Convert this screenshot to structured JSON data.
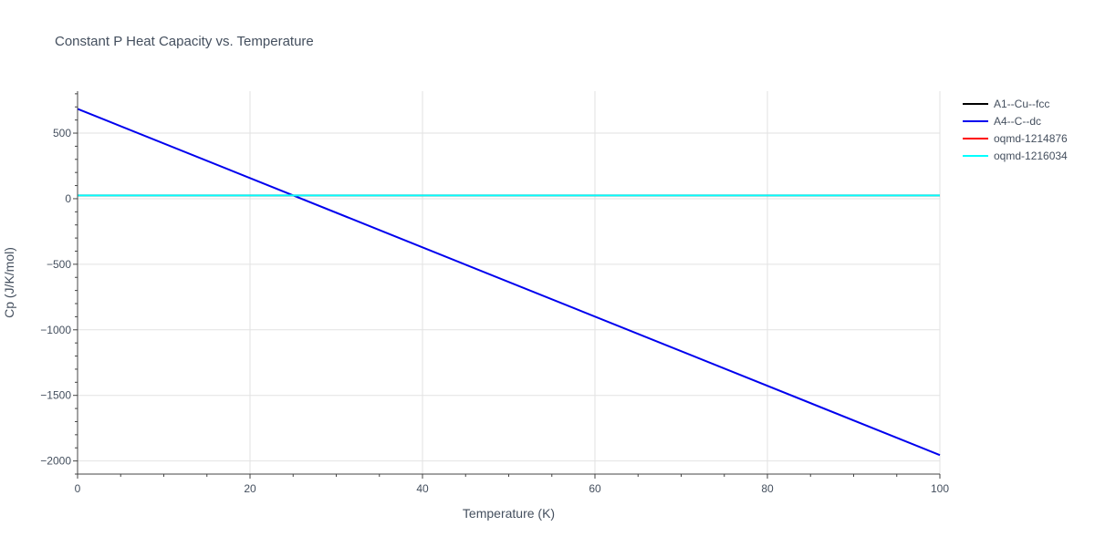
{
  "chart_data": {
    "type": "line",
    "title": "Constant P Heat Capacity vs. Temperature",
    "xlabel": "Temperature (K)",
    "ylabel": "Cp (J/K/mol)",
    "xlim": [
      0,
      100
    ],
    "ylim": [
      -2100,
      820
    ],
    "x_ticks": [
      0,
      20,
      40,
      60,
      80,
      100
    ],
    "y_ticks": [
      500,
      0,
      -500,
      -1000,
      -1500,
      -2000
    ],
    "x_tick_labels": [
      "0",
      "20",
      "40",
      "60",
      "80",
      "100"
    ],
    "y_tick_labels": [
      "500",
      "0",
      "−500",
      "−1000",
      "−1500",
      "−2000"
    ],
    "grid": true,
    "legend_position": "right",
    "series": [
      {
        "name": "A1--Cu--fcc",
        "color": "#000000",
        "x": [
          0,
          100
        ],
        "y": [
          24,
          24
        ]
      },
      {
        "name": "A4--C--dc",
        "color": "#0000ee",
        "x": [
          0,
          100
        ],
        "y": [
          685,
          -1955
        ]
      },
      {
        "name": "oqmd-1214876",
        "color": "#ff0000",
        "x": [
          0,
          100
        ],
        "y": [
          25,
          25
        ]
      },
      {
        "name": "oqmd-1216034",
        "color": "#00ffff",
        "x": [
          0,
          100
        ],
        "y": [
          25,
          25
        ]
      }
    ]
  }
}
